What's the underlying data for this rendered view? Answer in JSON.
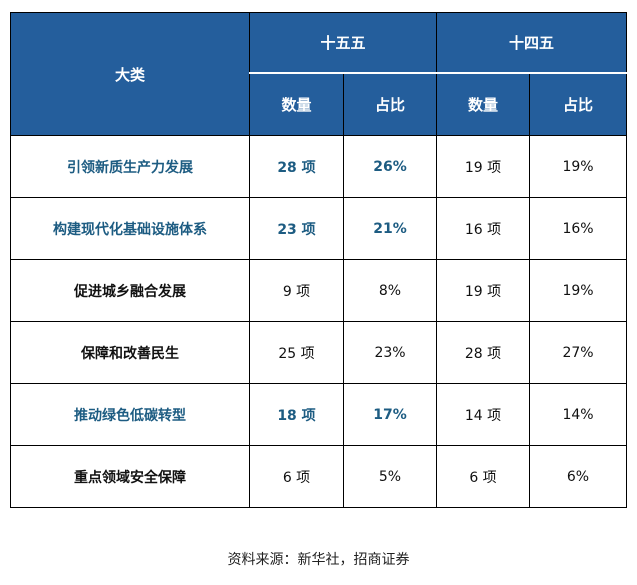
{
  "header": {
    "category": "大类",
    "period1": "十五五",
    "period2": "十四五",
    "count": "数量",
    "share": "占比"
  },
  "rows": [
    {
      "category": "引领新质生产力发展",
      "c1": "28 项",
      "s1": "26%",
      "c2": "19 项",
      "s2": "19%",
      "highlight": true
    },
    {
      "category": "构建现代化基础设施体系",
      "c1": "23 项",
      "s1": "21%",
      "c2": "16 项",
      "s2": "16%",
      "highlight": true
    },
    {
      "category": "促进城乡融合发展",
      "c1": "9 项",
      "s1": "8%",
      "c2": "19 项",
      "s2": "19%",
      "highlight": false
    },
    {
      "category": "保障和改善民生",
      "c1": "25 项",
      "s1": "23%",
      "c2": "28 项",
      "s2": "27%",
      "highlight": false
    },
    {
      "category": "推动绿色低碳转型",
      "c1": "18 项",
      "s1": "17%",
      "c2": "14 项",
      "s2": "14%",
      "highlight": true
    },
    {
      "category": "重点领域安全保障",
      "c1": "6 项",
      "s1": "5%",
      "c2": "6 项",
      "s2": "6%",
      "highlight": false
    }
  ],
  "source": "资料来源：新华社，招商证券",
  "colors": {
    "header_bg": "#245e9c",
    "highlight_text": "#1d5c82"
  }
}
